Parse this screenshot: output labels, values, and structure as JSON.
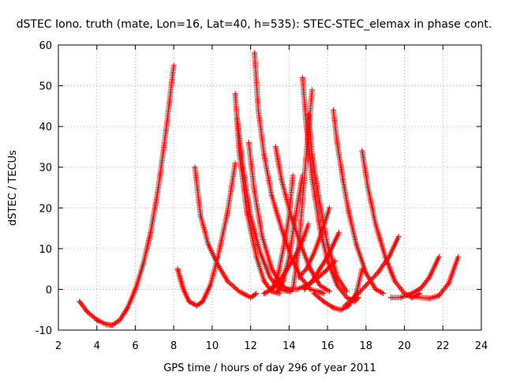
{
  "chart_data": {
    "type": "scatter",
    "title": "dSTEC Iono. truth (mate, Lon=16, Lat=40, h=535): STEC-STEC_elemax in phase cont.",
    "xlabel": "GPS time / hours of day 296 of year 2011",
    "ylabel": "dSTEC  / TECUs",
    "xlim": [
      2,
      24
    ],
    "ylim": [
      -10,
      60
    ],
    "xticks": [
      2,
      4,
      6,
      8,
      10,
      12,
      14,
      16,
      18,
      20,
      22,
      24
    ],
    "yticks": [
      -10,
      0,
      10,
      20,
      30,
      40,
      50,
      60
    ],
    "xtick_labels": [
      "2",
      "4",
      "6",
      "8",
      "10",
      "12",
      "14",
      "16",
      "18",
      "20",
      "22",
      "24"
    ],
    "ytick_labels": [
      "-10",
      "0",
      "10",
      "20",
      "30",
      "40",
      "50",
      "60"
    ],
    "grid": true,
    "legend": "none",
    "marker": "+",
    "color": "#ff0000",
    "series": [
      {
        "x": [
          3.1,
          3.5,
          4.0,
          4.5,
          4.8,
          5.2,
          5.6,
          6.0,
          6.4,
          6.8,
          7.2,
          7.6,
          8.0
        ],
        "y": [
          -3,
          -5.5,
          -7.5,
          -8.6,
          -8.8,
          -7.5,
          -4.5,
          0,
          6,
          14,
          25,
          39,
          55
        ]
      },
      {
        "x": [
          8.2,
          8.5,
          8.8,
          9.2,
          9.5,
          9.9,
          10.3,
          10.8,
          11.2
        ],
        "y": [
          5,
          0,
          -3,
          -4,
          -3,
          1,
          8,
          19,
          31
        ]
      },
      {
        "x": [
          9.1,
          9.4,
          9.8,
          10.3,
          10.8,
          11.4,
          12.0,
          12.3
        ],
        "y": [
          30,
          18,
          11,
          6,
          2,
          -0.5,
          -2,
          -1
        ]
      },
      {
        "x": [
          11.2,
          11.4,
          11.8,
          12.3,
          12.7,
          13.1,
          13.5
        ],
        "y": [
          48,
          34,
          19,
          8,
          2,
          -0.5,
          -1
        ]
      },
      {
        "x": [
          11.3,
          11.6,
          12.0,
          12.5,
          13.0,
          13.5,
          14.0
        ],
        "y": [
          42,
          30,
          18,
          9,
          3,
          0,
          -0.5
        ]
      },
      {
        "x": [
          11.9,
          12.2,
          12.6,
          13.1,
          13.6,
          14.1
        ],
        "y": [
          36,
          24,
          13,
          5,
          1,
          -0.5
        ]
      },
      {
        "x": [
          12.2,
          12.4,
          12.7,
          13.1,
          13.6,
          14.1,
          14.6,
          15.1,
          15.5,
          15.8
        ],
        "y": [
          58,
          44,
          33,
          23,
          15,
          8,
          3,
          0,
          -0.5,
          -1
        ]
      },
      {
        "x": [
          13.3,
          13.6,
          14.1,
          14.6,
          15.1,
          15.6,
          16.1
        ],
        "y": [
          35,
          27,
          18,
          11,
          5,
          1,
          -0.5
        ]
      },
      {
        "x": [
          12.7,
          13.1,
          13.5,
          13.9,
          14.3,
          14.7,
          15.0
        ],
        "y": [
          -1,
          0,
          2,
          5,
          8,
          12,
          16
        ]
      },
      {
        "x": [
          13.4,
          13.7,
          14.0,
          14.3,
          14.7
        ],
        "y": [
          -0.5,
          2,
          8,
          17,
          28
        ]
      },
      {
        "x": [
          13.1,
          13.4,
          13.7,
          14.0,
          14.2
        ],
        "y": [
          0,
          3,
          10,
          18,
          28
        ]
      },
      {
        "x": [
          14.2,
          14.5,
          14.8,
          15.2
        ],
        "y": [
          0,
          10,
          28,
          49
        ]
      },
      {
        "x": [
          14.7,
          14.9,
          15.2,
          15.6,
          16.0,
          16.5,
          17.0,
          17.4,
          17.6
        ],
        "y": [
          52,
          40,
          27,
          15,
          7,
          1,
          -2,
          -3,
          -2
        ]
      },
      {
        "x": [
          15.0,
          15.2,
          15.6,
          16.0,
          16.5,
          17.0
        ],
        "y": [
          43,
          33,
          21,
          11,
          3,
          -0.5
        ]
      },
      {
        "x": [
          14.5,
          14.9,
          15.3,
          15.7,
          16.1
        ],
        "y": [
          3,
          5,
          9,
          14,
          20
        ]
      },
      {
        "x": [
          14.8,
          15.2,
          15.6,
          16.0,
          16.3,
          16.6
        ],
        "y": [
          0,
          2,
          5,
          8,
          11,
          14
        ]
      },
      {
        "x": [
          13.9,
          14.4,
          14.9,
          15.4,
          15.9,
          16.4
        ],
        "y": [
          0,
          0,
          1,
          2.5,
          4.5,
          7
        ]
      },
      {
        "x": [
          16.3,
          16.5,
          16.8,
          17.1,
          17.5,
          18.0,
          18.5,
          18.9
        ],
        "y": [
          44,
          36,
          27,
          19,
          11,
          4,
          0,
          -1
        ]
      },
      {
        "x": [
          15.3,
          15.8,
          16.3,
          16.7,
          17.1,
          17.5,
          17.8
        ],
        "y": [
          -1,
          -3,
          -4.5,
          -5,
          -4,
          -1,
          5
        ]
      },
      {
        "x": [
          17.8,
          18.1,
          18.5,
          19.0,
          19.5,
          20.0,
          20.4,
          20.8
        ],
        "y": [
          34,
          25,
          16,
          8,
          2,
          -1,
          -2,
          -1
        ]
      },
      {
        "x": [
          16.9,
          17.4,
          18.0,
          18.6,
          19.2,
          19.7
        ],
        "y": [
          -4,
          -2,
          1,
          4,
          8,
          13
        ]
      },
      {
        "x": [
          19.3,
          19.8,
          20.4,
          20.9,
          21.3,
          21.8
        ],
        "y": [
          -2,
          -2,
          -1,
          0.5,
          3,
          8
        ]
      },
      {
        "x": [
          20.3,
          20.8,
          21.3,
          21.8,
          22.3,
          22.8
        ],
        "y": [
          -1.5,
          -2,
          -2.2,
          -1.5,
          1.5,
          8
        ]
      }
    ]
  }
}
